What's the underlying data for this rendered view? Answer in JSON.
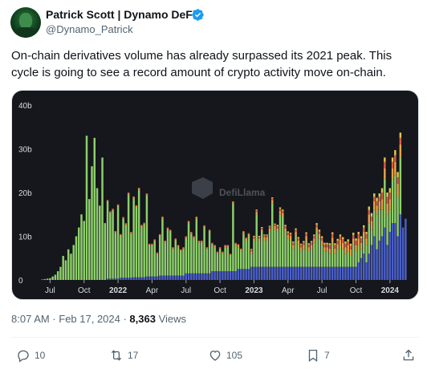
{
  "author": {
    "name": "Patrick Scott | Dynamo DeFi",
    "handle": "@Dynamo_Patrick"
  },
  "tweet": {
    "text": "On-chain derivatives volume has already surpassed its 2021 peak. This cycle is going to see a record amount of crypto activity move on-chain."
  },
  "meta": {
    "timestamp": "8:07 AM · Feb 17, 2024 · ",
    "views_count": "8,363",
    "views_label": " Views"
  },
  "actions": {
    "replies": "10",
    "reposts": "17",
    "likes": "105",
    "bookmarks": "7"
  },
  "colors": {
    "chart_bg": "#15171c",
    "green": "#8ecf6c",
    "blue": "#4a5fc7",
    "verified": "#1d9bf0"
  },
  "chart_data": {
    "type": "bar",
    "stacked": true,
    "watermark": "DefiLlama",
    "ylim": [
      0,
      40
    ],
    "y_ticks": [
      0,
      10,
      20,
      30,
      40
    ],
    "y_tick_labels": [
      "0",
      "10b",
      "20b",
      "30b",
      "40b"
    ],
    "x_ticks": [
      {
        "label": "Jul",
        "week": 3,
        "bold": false
      },
      {
        "label": "Oct",
        "week": 16,
        "bold": false
      },
      {
        "label": "2022",
        "week": 29,
        "bold": true
      },
      {
        "label": "Apr",
        "week": 42,
        "bold": false
      },
      {
        "label": "Jul",
        "week": 55,
        "bold": false
      },
      {
        "label": "Oct",
        "week": 68,
        "bold": false
      },
      {
        "label": "2023",
        "week": 81,
        "bold": true
      },
      {
        "label": "Apr",
        "week": 94,
        "bold": false
      },
      {
        "label": "Jul",
        "week": 107,
        "bold": false
      },
      {
        "label": "Oct",
        "week": 120,
        "bold": false
      },
      {
        "label": "2024",
        "week": 133,
        "bold": true
      }
    ],
    "series": [
      {
        "color": "#4a5fc7",
        "values": [
          0,
          0,
          0,
          0,
          0,
          0,
          0,
          0,
          0,
          0,
          0,
          0,
          0,
          0,
          0,
          0,
          0,
          0,
          0,
          0,
          0,
          0,
          0,
          0,
          0,
          0.3,
          0.3,
          0.3,
          0.3,
          0.3,
          0.5,
          0.5,
          0.5,
          0.5,
          0.5,
          0.6,
          0.6,
          0.6,
          0.6,
          0.6,
          0.8,
          0.8,
          0.8,
          0.8,
          0.8,
          1,
          1,
          1,
          1,
          1,
          1,
          1,
          1,
          1,
          1,
          1.5,
          1.5,
          1.5,
          1.5,
          1.5,
          1.5,
          1.5,
          1.5,
          1.5,
          1.5,
          2,
          2,
          2,
          2,
          2,
          2,
          2,
          2,
          2,
          2,
          2.5,
          2.5,
          2.5,
          2.5,
          2.5,
          3,
          3,
          3,
          3,
          3,
          3,
          3,
          3,
          3,
          3,
          3,
          3,
          3,
          3,
          3,
          3,
          3,
          3,
          3,
          3,
          3,
          3,
          3,
          3,
          3,
          3,
          3,
          3,
          3,
          3,
          3,
          3,
          3,
          3,
          3,
          3,
          3,
          3,
          3,
          3,
          3,
          4,
          5,
          6,
          4,
          6,
          8,
          10,
          7,
          9,
          10,
          12,
          8,
          11,
          13,
          13,
          10,
          15,
          12,
          14
        ]
      },
      {
        "color": "#8ecf6c",
        "values": [
          0.1,
          0.2,
          0.3,
          0.4,
          0.8,
          1.2,
          2,
          3,
          5.5,
          4.5,
          7,
          6,
          8,
          10,
          12,
          15,
          13.5,
          33,
          18.5,
          26,
          32.5,
          21,
          17,
          28,
          13,
          17.5,
          15,
          15.5,
          10.5,
          16.5,
          9.5,
          13.5,
          12,
          19,
          10,
          18,
          16,
          20,
          11.5,
          12,
          18.5,
          7,
          7,
          8,
          5,
          9,
          13,
          7.5,
          10.5,
          10,
          6,
          8,
          6.5,
          5.5,
          6,
          8,
          11.5,
          9,
          8,
          12.5,
          7,
          7,
          10.5,
          5.5,
          9.5,
          6,
          5.5,
          4,
          5,
          4,
          5.5,
          5.5,
          3.5,
          15.5,
          6,
          5,
          4,
          8,
          6.5,
          7.5,
          3,
          6,
          12,
          6,
          8,
          6,
          6,
          8,
          14.5,
          8.5,
          8,
          12,
          11.5,
          8,
          6.5,
          6,
          4,
          7,
          5,
          3.5,
          4,
          6,
          3.5,
          4,
          5.5,
          8,
          6.5,
          5,
          3.5,
          3.5,
          3,
          5.5,
          3,
          4,
          5,
          4,
          3,
          3.5,
          2.5,
          5,
          3.5,
          4,
          2,
          3.5,
          4,
          7,
          3.5,
          6,
          8,
          7,
          6,
          11,
          7,
          5,
          10,
          11,
          9,
          13
        ]
      },
      {
        "color": "#e8a24a",
        "values": [
          0,
          0,
          0,
          0,
          0,
          0,
          0,
          0,
          0,
          0,
          0,
          0,
          0,
          0,
          0,
          0,
          0,
          0,
          0,
          0,
          0,
          0,
          0,
          0,
          0,
          0.3,
          0.2,
          0.3,
          0.2,
          0.3,
          0.3,
          0.2,
          0.3,
          0.3,
          0.3,
          0.3,
          0.3,
          0.3,
          0.3,
          0.3,
          0.3,
          0.3,
          0.3,
          0.3,
          0.3,
          0.3,
          0.3,
          0.3,
          0.3,
          0.3,
          0.3,
          0.3,
          0.3,
          0.3,
          0.3,
          0.3,
          0.3,
          0.3,
          0.3,
          0.3,
          0.3,
          0.3,
          0.3,
          0.3,
          0.3,
          0.3,
          0.3,
          0.3,
          0.3,
          0.3,
          0.3,
          0.3,
          0.3,
          0.3,
          0.3,
          0.5,
          0.5,
          0.5,
          0.5,
          0.5,
          0.5,
          0.5,
          0.5,
          0.5,
          0.5,
          0.8,
          0.8,
          0.8,
          0.8,
          0.8,
          0.8,
          0.8,
          0.8,
          0.8,
          0.8,
          1,
          1,
          1,
          1,
          1,
          1,
          1,
          1,
          1,
          1,
          1,
          1,
          1,
          1,
          1,
          1.2,
          1.2,
          1.2,
          1.2,
          1.2,
          1.5,
          1.5,
          1.5,
          1.5,
          1.5,
          1.5,
          1.5,
          1.5,
          1.5,
          1.5,
          2,
          2,
          2,
          2,
          2,
          2.5,
          2.5,
          2.5,
          2.5,
          2.5,
          3,
          3,
          3,
          3,
          3
        ]
      },
      {
        "color": "#d95c4a",
        "values": [
          0,
          0,
          0,
          0,
          0,
          0,
          0,
          0,
          0,
          0,
          0,
          0,
          0,
          0,
          0,
          0,
          0,
          0,
          0,
          0,
          0,
          0,
          0,
          0,
          0,
          0.2,
          0.2,
          0.2,
          0.2,
          0.2,
          0.2,
          0.2,
          0.2,
          0.2,
          0.2,
          0.2,
          0.2,
          0.2,
          0.2,
          0.2,
          0.2,
          0.2,
          0.2,
          0.2,
          0.2,
          0.2,
          0.2,
          0.2,
          0.2,
          0.2,
          0.2,
          0.2,
          0.2,
          0.2,
          0.2,
          0.2,
          0.2,
          0.2,
          0.2,
          0.2,
          0.2,
          0.2,
          0.2,
          0.2,
          0.2,
          0.2,
          0.2,
          0.2,
          0.2,
          0.2,
          0.2,
          0.2,
          0.2,
          0.2,
          0.2,
          0.2,
          0.2,
          0.2,
          0.2,
          0.2,
          0.4,
          0.4,
          0.4,
          0.4,
          0.4,
          0.4,
          0.4,
          0.4,
          0.4,
          0.4,
          0.5,
          0.5,
          0.5,
          0.5,
          0.5,
          0.5,
          0.5,
          0.5,
          0.5,
          0.5,
          0.6,
          0.6,
          0.6,
          0.6,
          0.6,
          0.6,
          0.6,
          0.6,
          0.6,
          0.6,
          0.8,
          0.8,
          0.8,
          0.8,
          0.8,
          0.8,
          0.8,
          0.8,
          0.8,
          0.8,
          1,
          1,
          1,
          1,
          1,
          1,
          1,
          1,
          1,
          1,
          1.5,
          1.5,
          1.5,
          1.5,
          1.5,
          1.5,
          1.5,
          1.5,
          1.5,
          1.5
        ]
      },
      {
        "color": "#d9c84a",
        "values": [
          0,
          0,
          0,
          0,
          0,
          0,
          0,
          0,
          0,
          0,
          0,
          0,
          0,
          0,
          0,
          0,
          0,
          0,
          0,
          0,
          0,
          0,
          0,
          0,
          0,
          0,
          0,
          0,
          0,
          0,
          0,
          0,
          0,
          0,
          0,
          0,
          0,
          0,
          0,
          0,
          0,
          0,
          0,
          0,
          0,
          0,
          0,
          0,
          0,
          0,
          0,
          0,
          0,
          0,
          0,
          0,
          0,
          0,
          0,
          0,
          0,
          0,
          0,
          0,
          0,
          0,
          0,
          0,
          0,
          0,
          0,
          0,
          0,
          0,
          0,
          0,
          0,
          0,
          0,
          0,
          0.2,
          0.2,
          0.2,
          0.2,
          0.2,
          0.2,
          0.2,
          0.2,
          0.2,
          0.2,
          0.3,
          0.3,
          0.3,
          0.3,
          0.3,
          0.3,
          0.3,
          0.3,
          0.3,
          0.3,
          0.3,
          0.3,
          0.3,
          0.3,
          0.3,
          0.4,
          0.4,
          0.4,
          0.4,
          0.4,
          0.4,
          0.4,
          0.4,
          0.4,
          0.4,
          0.5,
          0.5,
          0.5,
          0.5,
          0.5,
          0.5,
          0.5,
          0.5,
          0.5,
          0.5,
          0.8,
          0.8,
          0.8,
          0.8,
          0.8,
          1,
          1,
          1,
          1,
          1,
          1.2,
          1.2,
          1.2,
          1.2,
          1.2
        ]
      }
    ]
  }
}
